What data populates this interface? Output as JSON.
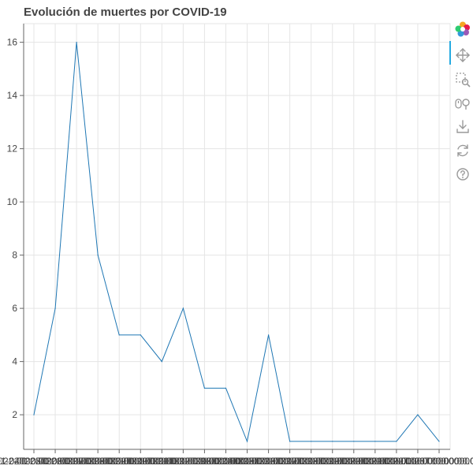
{
  "chart_data": {
    "type": "line",
    "title": "Evolución de muertes por COVID-19",
    "xlabel": "",
    "ylabel": "",
    "x_tick_labels": [
      "2022-01-04T00:00:00.000000",
      "2022-01-05T00:00:00.000000",
      "2022-01-06T00:00:00.000000",
      "2022-01-07T00:00:00.000000",
      "2022-01-08T00:00:00.000000",
      "2022-01-09T00:00:00.000000",
      "2022-01-10T00:00:00.000000",
      "2022-01-11T00:00:00.000000",
      "2022-01-12T00:00:00.000000",
      "2022-01-13T00:00:00.000000",
      "2022-01-14T00:00:00.000000",
      "2022-01-15T00:00:00.000000",
      "2022-01-16T00:00:00.000000",
      "2022-01-17T00:00:00.000000",
      "2022-01-18T00:00:00.000000",
      "2022-01-19T00:00:00.000000",
      "2022-01-20T00:00:00.000000",
      "2022-01-21T00:00:00.000000",
      "2022-01-22T00:00:00.000000",
      "2022-01-23T00:00:00.000000"
    ],
    "series": [
      {
        "values": [
          2,
          6,
          16,
          8,
          5,
          5,
          4,
          6,
          3,
          3,
          1,
          5,
          1,
          1,
          1,
          1,
          1,
          1,
          2,
          1
        ],
        "color": "#1f77b4"
      }
    ],
    "y_ticks": [
      2,
      4,
      6,
      8,
      10,
      12,
      14,
      16
    ],
    "ylim": [
      0.7,
      16.7
    ],
    "grid": true,
    "legend": "none"
  },
  "toolbar": {
    "tools": [
      {
        "name": "bokeh-logo-icon"
      },
      {
        "name": "pan-icon"
      },
      {
        "name": "box-zoom-icon"
      },
      {
        "name": "wheel-zoom-icon"
      },
      {
        "name": "save-icon"
      },
      {
        "name": "reset-icon"
      },
      {
        "name": "help-icon"
      }
    ]
  },
  "colors": {
    "line": "#1f77b4",
    "grid": "#e5e5e5",
    "axis": "#666666",
    "tick_label": "#444444",
    "title": "#444444",
    "toolbar_active": "#26aae1"
  }
}
